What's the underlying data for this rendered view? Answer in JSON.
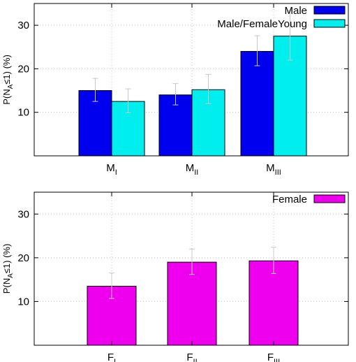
{
  "chart_data": [
    {
      "type": "bar",
      "ylabel_parts": {
        "prefix": "P(N",
        "sub": "A",
        "suffix": "≤1) (%)"
      },
      "ylim": [
        0,
        35
      ],
      "yticks": [
        10,
        20,
        30
      ],
      "grid": true,
      "legend_position": "top-right",
      "categories": [
        {
          "main": "M",
          "sub": "I"
        },
        {
          "main": "M",
          "sub": "II"
        },
        {
          "main": "M",
          "sub": "III"
        }
      ],
      "series": [
        {
          "name": "Male",
          "color": "#0000ee",
          "values": [
            15.0,
            14.0,
            24.0
          ],
          "err_upper": [
            2.8,
            2.6,
            3.6
          ],
          "err_lower": [
            2.5,
            2.3,
            3.3
          ]
        },
        {
          "name": "Male/FemaleYoung",
          "color": "#00eeee",
          "values": [
            12.5,
            15.2,
            27.5
          ],
          "err_upper": [
            2.9,
            3.5,
            5.8
          ],
          "err_lower": [
            2.6,
            3.2,
            5.5
          ]
        }
      ]
    },
    {
      "type": "bar",
      "ylabel_parts": {
        "prefix": "P(N",
        "sub": "A",
        "suffix": "≤1) (%)"
      },
      "ylim": [
        0,
        35
      ],
      "yticks": [
        10,
        20,
        30
      ],
      "grid": true,
      "legend_position": "top-right",
      "categories": [
        {
          "main": "F",
          "sub": "I"
        },
        {
          "main": "F",
          "sub": "II"
        },
        {
          "main": "F",
          "sub": "III"
        }
      ],
      "series": [
        {
          "name": "Female",
          "color": "#ee00ee",
          "values": [
            13.5,
            19.0,
            19.3
          ],
          "err_upper": [
            3.0,
            3.0,
            3.1
          ],
          "err_lower": [
            2.8,
            2.8,
            2.9
          ]
        }
      ]
    }
  ]
}
